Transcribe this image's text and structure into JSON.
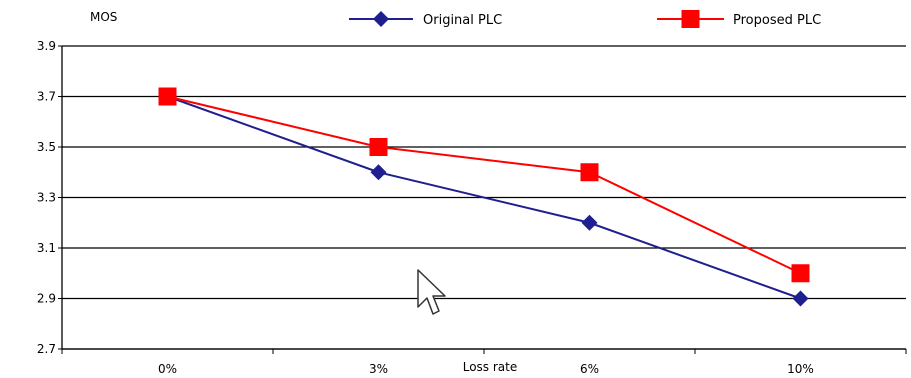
{
  "chart_data": {
    "type": "line",
    "categories": [
      "0%",
      "3%",
      "6%",
      "10%"
    ],
    "series": [
      {
        "name": "Original PLC",
        "values": [
          3.7,
          3.4,
          3.2,
          2.9
        ],
        "color": "#1F1F8F",
        "marker": "diamond"
      },
      {
        "name": "Proposed PLC",
        "values": [
          3.7,
          3.5,
          3.4,
          3.0
        ],
        "color": "#FF0000",
        "marker": "square"
      }
    ],
    "ylabel": "MOS",
    "xlabel": "Loss rate",
    "ylim": [
      2.7,
      3.9
    ],
    "yticks": [
      "3.9",
      "3.7",
      "3.5",
      "3.3",
      "3.1",
      "2.9",
      "2.7"
    ],
    "grid": "horizontal",
    "legend_position": "top"
  },
  "cursor_icon": "mouse-pointer-icon"
}
